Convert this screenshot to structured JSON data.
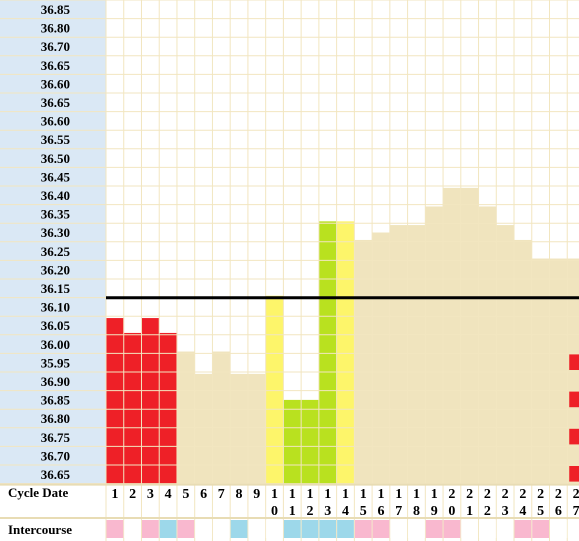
{
  "chart_data": {
    "type": "bar",
    "ylabels": [
      "36.85",
      "36.80",
      "36.70",
      "36.65",
      "36.60",
      "36.65",
      "36.60",
      "36.55",
      "36.50",
      "36.45",
      "36.40",
      "36.35",
      "36.30",
      "36.25",
      "36.20",
      "36.15",
      "36.10",
      "36.05",
      "36.00",
      "35.95",
      "36.90",
      "36.85",
      "36.80",
      "36.75",
      "36.70",
      "36.65"
    ],
    "days": [
      "1",
      "2",
      "3",
      "4",
      "5",
      "6",
      "7",
      "8",
      "9",
      "10",
      "11",
      "12",
      "13",
      "14",
      "15",
      "16",
      "17",
      "18",
      "19",
      "20",
      "21",
      "22",
      "23",
      "24",
      "25",
      "26",
      "27"
    ],
    "values": [
      36.07,
      36.03,
      36.07,
      36.03,
      35.98,
      35.92,
      35.98,
      35.92,
      35.92,
      36.13,
      35.85,
      35.85,
      36.33,
      36.33,
      36.28,
      36.3,
      36.32,
      36.32,
      36.37,
      36.42,
      36.42,
      36.37,
      36.32,
      36.28,
      36.23,
      36.23,
      36.23
    ],
    "colors": [
      "#ee2027",
      "#ee2027",
      "#ee2027",
      "#ee2027",
      "#f0e4be",
      "#f0e4be",
      "#f0e4be",
      "#f0e4be",
      "#f0e4be",
      "#fdf56a",
      "#b9e11f",
      "#b9e11f",
      "#b9e11f",
      "#fdf56a",
      "#f0e4be",
      "#f0e4be",
      "#f0e4be",
      "#f0e4be",
      "#f0e4be",
      "#f0e4be",
      "#f0e4be",
      "#f0e4be",
      "#f0e4be",
      "#f0e4be",
      "#f0e4be",
      "#f0e4be",
      "#f0e4be"
    ],
    "red_series_top": [
      36.07,
      36.03,
      36.07,
      36.03
    ],
    "coverline": 36.13,
    "day27_markers": [
      35.95,
      36.85,
      36.75,
      36.65
    ],
    "row_labels": {
      "cycle_date": "Cycle Date",
      "intercourse": "Intercourse"
    },
    "intercourse": [
      "pink",
      "none",
      "pink",
      "blue",
      "pink",
      "none",
      "none",
      "blue",
      "none",
      "none",
      "blue",
      "blue",
      "blue",
      "blue",
      "pink",
      "pink",
      "none",
      "none",
      "pink",
      "pink",
      "none",
      "none",
      "none",
      "pink",
      "pink",
      "none",
      "none"
    ],
    "intercourse_colors": {
      "pink": "#f9b8cf",
      "blue": "#9dd8ea",
      "none": "#ffffff"
    },
    "grid": true
  }
}
